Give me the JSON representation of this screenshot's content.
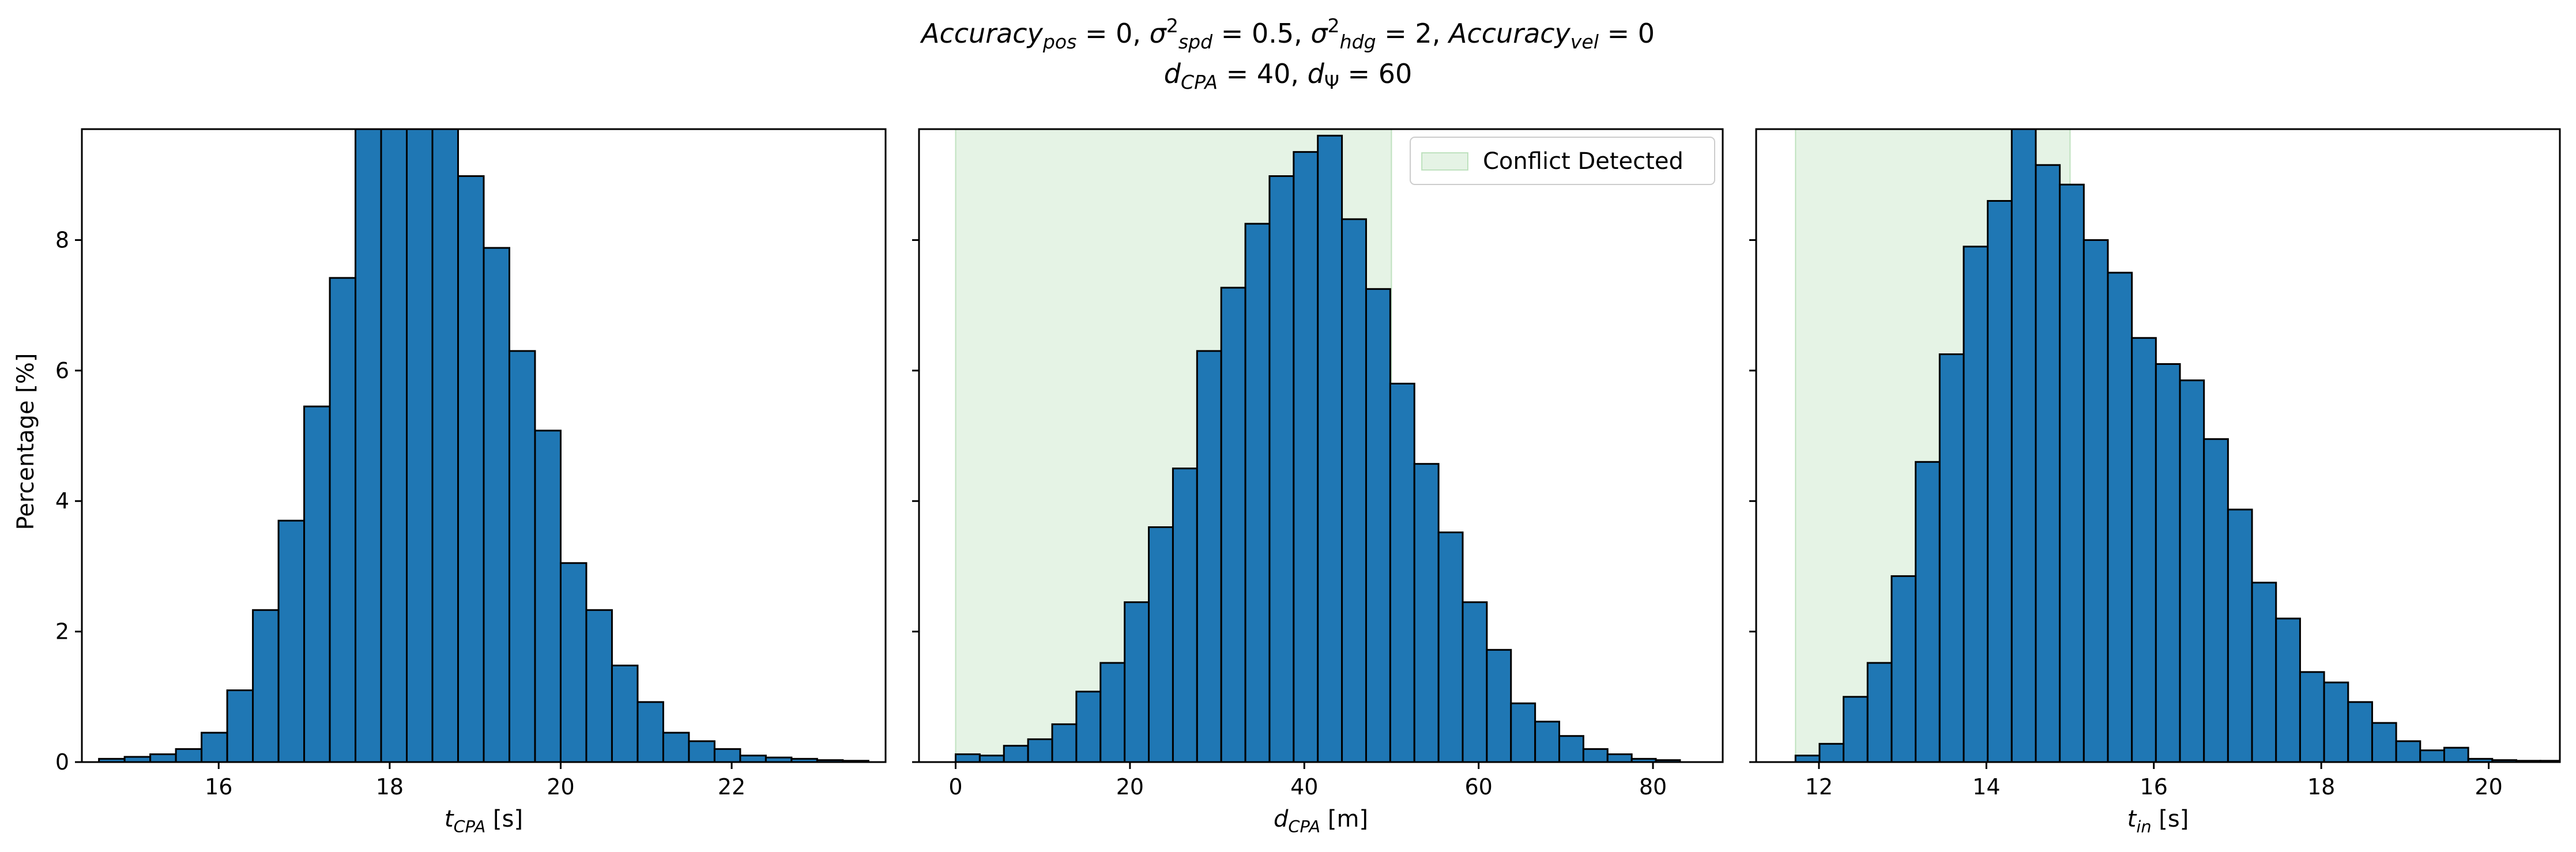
{
  "figure": {
    "title_line1": {
      "parts": [
        {
          "t": "Accuracy",
          "it": true
        },
        {
          "t": "pos",
          "it": true,
          "sub": true
        },
        {
          "t": " = 0, "
        },
        {
          "t": "σ",
          "it": true
        },
        {
          "t": "2",
          "sup": true
        },
        {
          "t": "spd",
          "it": true,
          "sub": true
        },
        {
          "t": " = 0.5, "
        },
        {
          "t": "σ",
          "it": true
        },
        {
          "t": "2",
          "sup": true
        },
        {
          "t": "hdg",
          "it": true,
          "sub": true
        },
        {
          "t": " = 2, "
        },
        {
          "t": "Accuracy",
          "it": true
        },
        {
          "t": "vel",
          "it": true,
          "sub": true
        },
        {
          "t": " = 0"
        }
      ]
    },
    "title_line2": {
      "parts": [
        {
          "t": "d",
          "it": true
        },
        {
          "t": "CPA",
          "it": true,
          "sub": true
        },
        {
          "t": " = 40, "
        },
        {
          "t": "d",
          "it": true
        },
        {
          "t": "Ψ",
          "sub": true
        },
        {
          "t": " = 60"
        }
      ]
    },
    "ylabel": "Percentage [%]",
    "colors": {
      "bar": "#1f77b4",
      "edge": "#000000",
      "shade": "#2ca02c",
      "shade_opacity": 0.12
    }
  },
  "chart_data": [
    {
      "type": "bar",
      "xlabel_parts": [
        {
          "t": "t",
          "it": true
        },
        {
          "t": "CPA",
          "it": true,
          "sub": true
        },
        {
          "t": " [s]"
        }
      ],
      "xlim": [
        14.4,
        23.8
      ],
      "ylim": [
        0,
        9.7
      ],
      "xticks": [
        16,
        18,
        20,
        22
      ],
      "yticks": [
        0,
        2,
        4,
        6,
        8
      ],
      "show_ytick_labels": true,
      "bin_start": 14.6,
      "bin_width": 0.3,
      "values": [
        0.05,
        0.08,
        0.12,
        0.2,
        0.45,
        1.1,
        2.33,
        3.7,
        5.45,
        7.42,
        9.7,
        9.7,
        9.7,
        9.7,
        8.98,
        7.88,
        6.3,
        5.08,
        3.05,
        2.33,
        1.48,
        0.92,
        0.45,
        0.32,
        0.2,
        0.1,
        0.07,
        0.05,
        0.03,
        0.02
      ],
      "shade": null,
      "legend": null
    },
    {
      "type": "bar",
      "xlabel_parts": [
        {
          "t": "d",
          "it": true
        },
        {
          "t": "CPA",
          "it": true,
          "sub": true
        },
        {
          "t": " [m]"
        }
      ],
      "xlim": [
        -4.2,
        88.0
      ],
      "ylim": [
        0,
        9.7
      ],
      "xticks": [
        0,
        20,
        40,
        60,
        80
      ],
      "yticks": [
        0,
        2,
        4,
        6,
        8
      ],
      "show_ytick_labels": false,
      "bin_start": 0.0,
      "bin_width": 2.77,
      "values": [
        0.12,
        0.1,
        0.25,
        0.35,
        0.58,
        1.08,
        1.52,
        2.45,
        3.6,
        4.5,
        6.3,
        7.27,
        8.25,
        8.98,
        9.35,
        9.6,
        8.32,
        7.25,
        5.8,
        4.57,
        3.52,
        2.45,
        1.72,
        0.9,
        0.62,
        0.4,
        0.2,
        0.12,
        0.05,
        0.03
      ],
      "shade": [
        0,
        50
      ],
      "legend": {
        "label": "Conflict Detected",
        "position": "upper right"
      }
    },
    {
      "type": "bar",
      "xlabel_parts": [
        {
          "t": "t",
          "it": true
        },
        {
          "t": "in",
          "it": true,
          "sub": true
        },
        {
          "t": " [s]"
        }
      ],
      "xlim": [
        11.25,
        20.85
      ],
      "ylim": [
        0,
        9.7
      ],
      "xticks": [
        12,
        14,
        16,
        18,
        20
      ],
      "yticks": [
        0,
        2,
        4,
        6,
        8
      ],
      "show_ytick_labels": false,
      "bin_start": 11.72,
      "bin_width": 0.287,
      "values": [
        0.1,
        0.28,
        1.0,
        1.52,
        2.85,
        4.6,
        6.25,
        7.9,
        8.6,
        9.7,
        9.15,
        8.85,
        8.0,
        7.5,
        6.5,
        6.1,
        5.85,
        4.95,
        3.87,
        2.75,
        2.2,
        1.38,
        1.22,
        0.92,
        0.6,
        0.32,
        0.18,
        0.22,
        0.05,
        0.03,
        0.02,
        0.02
      ],
      "shade": [
        11.72,
        15.0
      ],
      "legend": null
    }
  ]
}
